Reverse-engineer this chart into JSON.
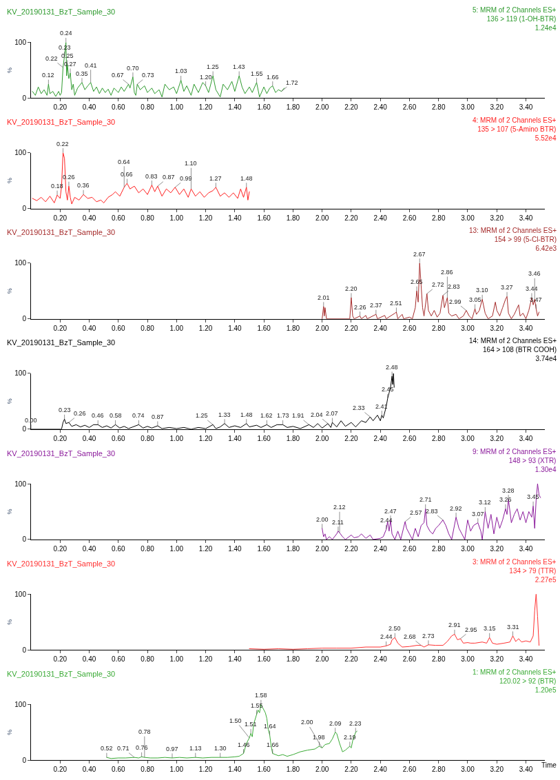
{
  "chart_data": [
    {
      "type": "line",
      "title": "KV_20190131_BzT_Sample_30",
      "subtitle": "5: MRM of 2 Channels ES+\n136 > 119 (1-OH-BTR)\n1.24e4",
      "ylabel": "%",
      "xlim": [
        0,
        3.53
      ],
      "ylim": [
        0,
        100
      ],
      "yticks": [
        0,
        100
      ],
      "xticks": [
        {
          "value": 0.2,
          "label": "0.20"
        },
        {
          "value": 0.4,
          "label": "0.40"
        },
        {
          "value": 0.6,
          "label": "0.60"
        },
        {
          "value": 0.8,
          "label": "0.80"
        },
        {
          "value": 1.0,
          "label": "1.00"
        },
        {
          "value": 1.2,
          "label": "1.20"
        },
        {
          "value": 1.4,
          "label": "1.40"
        },
        {
          "value": 1.6,
          "label": "1.60"
        },
        {
          "value": 1.8,
          "label": "1.80"
        },
        {
          "value": 2.0,
          "label": "2.00"
        },
        {
          "value": 2.2,
          "label": "2.20"
        },
        {
          "value": 2.4,
          "label": "2.40"
        },
        {
          "value": 2.6,
          "label": "2.60"
        },
        {
          "value": 2.8,
          "label": "2.80"
        },
        {
          "value": 3.0,
          "label": "3.00"
        },
        {
          "value": 3.2,
          "label": "3.20"
        },
        {
          "value": 3.4,
          "label": "3.40"
        }
      ],
      "x": [
        0.01,
        0.03,
        0.05,
        0.07,
        0.09,
        0.11,
        0.12,
        0.13,
        0.15,
        0.17,
        0.19,
        0.2,
        0.21,
        0.22,
        0.23,
        0.24,
        0.245,
        0.25,
        0.26,
        0.27,
        0.28,
        0.29,
        0.3,
        0.32,
        0.35,
        0.37,
        0.39,
        0.41,
        0.43,
        0.45,
        0.47,
        0.49,
        0.51,
        0.53,
        0.55,
        0.57,
        0.6,
        0.62,
        0.64,
        0.67,
        0.68,
        0.7,
        0.71,
        0.72,
        0.73,
        0.75,
        0.78,
        0.8,
        0.83,
        0.85,
        0.88,
        0.9,
        0.92,
        0.95,
        0.98,
        1.0,
        1.03,
        1.05,
        1.07,
        1.1,
        1.12,
        1.15,
        1.18,
        1.2,
        1.22,
        1.25,
        1.27,
        1.3,
        1.32,
        1.35,
        1.38,
        1.4,
        1.43,
        1.45,
        1.47,
        1.5,
        1.52,
        1.55,
        1.57,
        1.6,
        1.62,
        1.64,
        1.66,
        1.68,
        1.7,
        1.72,
        1.74
      ],
      "series": [
        {
          "color": "#2e9a2e",
          "values": [
            12,
            5,
            20,
            8,
            15,
            5,
            25,
            8,
            12,
            3,
            12,
            5,
            10,
            55,
            75,
            100,
            40,
            60,
            35,
            45,
            15,
            25,
            5,
            18,
            28,
            15,
            22,
            28,
            12,
            20,
            8,
            18,
            10,
            16,
            5,
            18,
            10,
            20,
            12,
            25,
            18,
            38,
            10,
            5,
            25,
            15,
            22,
            10,
            18,
            8,
            15,
            2,
            25,
            15,
            20,
            8,
            32,
            12,
            22,
            5,
            25,
            10,
            28,
            22,
            10,
            40,
            15,
            2,
            25,
            15,
            30,
            12,
            40,
            20,
            8,
            20,
            10,
            28,
            2,
            20,
            8,
            18,
            22,
            10,
            15,
            12,
            18
          ]
        }
      ],
      "annotations": [
        {
          "text": "0.12",
          "x": 0.12,
          "y": 25
        },
        {
          "text": "0.22",
          "x": 0.22,
          "y": 55
        },
        {
          "text": "0.23",
          "x": 0.23,
          "y": 75
        },
        {
          "text": "0.24",
          "x": 0.24,
          "y": 100
        },
        {
          "text": "0.25",
          "x": 0.25,
          "y": 60
        },
        {
          "text": "0.27",
          "x": 0.27,
          "y": 45
        },
        {
          "text": "0.35",
          "x": 0.35,
          "y": 28
        },
        {
          "text": "0.41",
          "x": 0.41,
          "y": 28
        },
        {
          "text": "0.67",
          "x": 0.67,
          "y": 25
        },
        {
          "text": "0.70",
          "x": 0.7,
          "y": 38
        },
        {
          "text": "0.73",
          "x": 0.73,
          "y": 25
        },
        {
          "text": "1.03",
          "x": 1.03,
          "y": 32
        },
        {
          "text": "1.20",
          "x": 1.2,
          "y": 22
        },
        {
          "text": "1.25",
          "x": 1.25,
          "y": 40
        },
        {
          "text": "1.43",
          "x": 1.43,
          "y": 40
        },
        {
          "text": "1.55",
          "x": 1.55,
          "y": 28
        },
        {
          "text": "1.66",
          "x": 1.66,
          "y": 22
        },
        {
          "text": "1.72",
          "x": 1.72,
          "y": 12
        }
      ]
    },
    {
      "type": "line",
      "title": "KV_20190131_BzT_Sample_30",
      "subtitle": "4: MRM of 2 Channels ES+\n135 > 107 (5-Amino BTR)\n5.52e4",
      "ylabel": "%",
      "xlim": [
        0,
        3.53
      ],
      "ylim": [
        0,
        100
      ],
      "yticks": [
        0,
        100
      ],
      "xticks": [
        {
          "value": 0.2,
          "label": "0.20"
        },
        {
          "value": 0.4,
          "label": "0.40"
        },
        {
          "value": 0.6,
          "label": "0.60"
        },
        {
          "value": 0.8,
          "label": "0.80"
        },
        {
          "value": 1.0,
          "label": "1.00"
        },
        {
          "value": 1.2,
          "label": "1.20"
        },
        {
          "value": 1.4,
          "label": "1.40"
        },
        {
          "value": 1.6,
          "label": "1.60"
        },
        {
          "value": 1.8,
          "label": "1.80"
        },
        {
          "value": 2.0,
          "label": "2.00"
        },
        {
          "value": 2.2,
          "label": "2.20"
        },
        {
          "value": 2.4,
          "label": "2.40"
        },
        {
          "value": 2.6,
          "label": "2.60"
        },
        {
          "value": 2.8,
          "label": "2.80"
        },
        {
          "value": 3.0,
          "label": "3.00"
        },
        {
          "value": 3.2,
          "label": "3.20"
        },
        {
          "value": 3.4,
          "label": "3.40"
        }
      ],
      "x": [
        0.01,
        0.04,
        0.07,
        0.1,
        0.13,
        0.16,
        0.18,
        0.2,
        0.21,
        0.22,
        0.23,
        0.24,
        0.25,
        0.26,
        0.27,
        0.28,
        0.3,
        0.33,
        0.36,
        0.39,
        0.42,
        0.45,
        0.48,
        0.5,
        0.53,
        0.56,
        0.58,
        0.61,
        0.64,
        0.66,
        0.68,
        0.71,
        0.74,
        0.77,
        0.8,
        0.83,
        0.85,
        0.87,
        0.9,
        0.93,
        0.96,
        0.99,
        1.02,
        1.05,
        1.08,
        1.1,
        1.13,
        1.16,
        1.19,
        1.22,
        1.25,
        1.27,
        1.3,
        1.33,
        1.36,
        1.39,
        1.42,
        1.44,
        1.46,
        1.48,
        1.49,
        1.5
      ],
      "series": [
        {
          "color": "#ff2020",
          "values": [
            18,
            14,
            20,
            12,
            22,
            10,
            24,
            18,
            40,
            100,
            90,
            30,
            15,
            40,
            20,
            8,
            20,
            15,
            25,
            18,
            20,
            12,
            15,
            10,
            20,
            25,
            30,
            22,
            38,
            45,
            35,
            40,
            28,
            35,
            25,
            42,
            30,
            40,
            22,
            35,
            28,
            38,
            25,
            35,
            20,
            35,
            22,
            30,
            20,
            28,
            32,
            38,
            22,
            28,
            20,
            28,
            18,
            35,
            20,
            38,
            15,
            30
          ]
        }
      ],
      "annotations": [
        {
          "text": "0.18",
          "x": 0.18,
          "y": 24
        },
        {
          "text": "0.22",
          "x": 0.22,
          "y": 100
        },
        {
          "text": "0.26",
          "x": 0.26,
          "y": 40
        },
        {
          "text": "0.36",
          "x": 0.36,
          "y": 25
        },
        {
          "text": "0.64",
          "x": 0.64,
          "y": 38
        },
        {
          "text": "0.66",
          "x": 0.66,
          "y": 45
        },
        {
          "text": "0.83",
          "x": 0.83,
          "y": 42
        },
        {
          "text": "0.87",
          "x": 0.87,
          "y": 40
        },
        {
          "text": "0.99",
          "x": 0.99,
          "y": 38
        },
        {
          "text": "1.10",
          "x": 1.1,
          "y": 35
        },
        {
          "text": "1.27",
          "x": 1.27,
          "y": 38
        },
        {
          "text": "1.48",
          "x": 1.48,
          "y": 38
        }
      ]
    },
    {
      "type": "line",
      "title": "KV_20190131_BzT_Sample_30",
      "subtitle": "13: MRM of 2 Channels ES+\n154 > 99 (5-Cl-BTR)\n6.42e3",
      "ylabel": "%",
      "xlim": [
        0,
        3.53
      ],
      "ylim": [
        0,
        100
      ],
      "yticks": [
        0,
        100
      ],
      "xticks": [
        {
          "value": 0.2,
          "label": "0.20"
        },
        {
          "value": 0.4,
          "label": "0.40"
        },
        {
          "value": 0.6,
          "label": "0.60"
        },
        {
          "value": 0.8,
          "label": "0.80"
        },
        {
          "value": 1.0,
          "label": "1.00"
        },
        {
          "value": 1.2,
          "label": "1.20"
        },
        {
          "value": 1.4,
          "label": "1.40"
        },
        {
          "value": 1.6,
          "label": "1.60"
        },
        {
          "value": 1.8,
          "label": "1.80"
        },
        {
          "value": 2.0,
          "label": "2.00"
        },
        {
          "value": 2.2,
          "label": "2.20"
        },
        {
          "value": 2.4,
          "label": "2.40"
        },
        {
          "value": 2.6,
          "label": "2.60"
        },
        {
          "value": 2.8,
          "label": "2.80"
        },
        {
          "value": 3.0,
          "label": "3.00"
        },
        {
          "value": 3.2,
          "label": "3.20"
        },
        {
          "value": 3.4,
          "label": "3.40"
        }
      ],
      "x": [
        2.0,
        2.01,
        2.015,
        2.02,
        2.03,
        2.19,
        2.2,
        2.21,
        2.22,
        2.26,
        2.27,
        2.3,
        2.31,
        2.37,
        2.38,
        2.43,
        2.44,
        2.5,
        2.51,
        2.52,
        2.55,
        2.56,
        2.6,
        2.62,
        2.64,
        2.65,
        2.66,
        2.67,
        2.68,
        2.69,
        2.7,
        2.72,
        2.73,
        2.75,
        2.77,
        2.79,
        2.81,
        2.83,
        2.84,
        2.86,
        2.87,
        2.89,
        2.92,
        2.94,
        2.97,
        2.99,
        3.01,
        3.03,
        3.05,
        3.06,
        3.08,
        3.1,
        3.12,
        3.14,
        3.17,
        3.19,
        3.2,
        3.22,
        3.24,
        3.26,
        3.27,
        3.28,
        3.3,
        3.32,
        3.35,
        3.36,
        3.38,
        3.4,
        3.42,
        3.44,
        3.45,
        3.46,
        3.47,
        3.48,
        3.49
      ],
      "series": [
        {
          "color": "#a52a2a",
          "values": [
            0,
            22,
            5,
            20,
            0,
            0,
            38,
            5,
            0,
            5,
            0,
            6,
            0,
            8,
            0,
            6,
            0,
            10,
            12,
            0,
            8,
            0,
            3,
            0,
            20,
            50,
            30,
            100,
            60,
            20,
            5,
            45,
            15,
            5,
            15,
            3,
            10,
            42,
            20,
            38,
            10,
            5,
            8,
            0,
            5,
            15,
            5,
            0,
            18,
            8,
            15,
            35,
            10,
            0,
            5,
            30,
            15,
            5,
            20,
            35,
            40,
            10,
            0,
            8,
            25,
            5,
            10,
            0,
            15,
            38,
            25,
            35,
            18,
            5,
            12
          ]
        }
      ],
      "annotations": [
        {
          "text": "2.01",
          "x": 2.01,
          "y": 22
        },
        {
          "text": "2.20",
          "x": 2.2,
          "y": 38
        },
        {
          "text": "2.26",
          "x": 2.26,
          "y": 5
        },
        {
          "text": "2.37",
          "x": 2.37,
          "y": 8
        },
        {
          "text": "2.51",
          "x": 2.51,
          "y": 12
        },
        {
          "text": "2.65",
          "x": 2.65,
          "y": 50
        },
        {
          "text": "2.67",
          "x": 2.67,
          "y": 100
        },
        {
          "text": "2.72",
          "x": 2.72,
          "y": 45
        },
        {
          "text": "2.83",
          "x": 2.83,
          "y": 42
        },
        {
          "text": "2.86",
          "x": 2.86,
          "y": 38
        },
        {
          "text": "2.99",
          "x": 2.99,
          "y": 15
        },
        {
          "text": "3.05",
          "x": 3.05,
          "y": 18
        },
        {
          "text": "3.10",
          "x": 3.1,
          "y": 35
        },
        {
          "text": "3.27",
          "x": 3.27,
          "y": 40
        },
        {
          "text": "3.44",
          "x": 3.44,
          "y": 38
        },
        {
          "text": "3.46",
          "x": 3.46,
          "y": 35
        },
        {
          "text": "3.47",
          "x": 3.47,
          "y": 18
        }
      ]
    },
    {
      "type": "line",
      "title": "KV_20190131_BzT_Sample_30",
      "subtitle": "14: MRM of 2 Channels ES+\n164 > 108 (BTR COOH)\n3.74e4",
      "ylabel": "%",
      "xlim": [
        0,
        3.53
      ],
      "ylim": [
        0,
        100
      ],
      "yticks": [
        0,
        100
      ],
      "xticks": [
        {
          "value": 0.2,
          "label": "0.20"
        },
        {
          "value": 0.4,
          "label": "0.40"
        },
        {
          "value": 0.6,
          "label": "0.60"
        },
        {
          "value": 0.8,
          "label": "0.80"
        },
        {
          "value": 1.0,
          "label": "1.00"
        },
        {
          "value": 1.2,
          "label": "1.20"
        },
        {
          "value": 1.4,
          "label": "1.40"
        },
        {
          "value": 1.6,
          "label": "1.60"
        },
        {
          "value": 1.8,
          "label": "1.80"
        },
        {
          "value": 2.0,
          "label": "2.00"
        },
        {
          "value": 2.2,
          "label": "2.20"
        },
        {
          "value": 2.4,
          "label": "2.40"
        },
        {
          "value": 2.6,
          "label": "2.60"
        },
        {
          "value": 2.8,
          "label": "2.80"
        },
        {
          "value": 3.0,
          "label": "3.00"
        },
        {
          "value": 3.2,
          "label": "3.20"
        },
        {
          "value": 3.4,
          "label": "3.40"
        }
      ],
      "x": [
        0.0,
        0.21,
        0.22,
        0.23,
        0.24,
        0.26,
        0.28,
        0.31,
        0.34,
        0.37,
        0.4,
        0.43,
        0.46,
        0.49,
        0.52,
        0.55,
        0.58,
        0.61,
        0.64,
        0.67,
        0.7,
        0.74,
        0.77,
        0.8,
        0.83,
        0.87,
        0.9,
        0.95,
        1.0,
        1.05,
        1.1,
        1.15,
        1.2,
        1.25,
        1.27,
        1.3,
        1.33,
        1.36,
        1.4,
        1.44,
        1.48,
        1.5,
        1.55,
        1.58,
        1.62,
        1.65,
        1.69,
        1.73,
        1.76,
        1.8,
        1.85,
        1.91,
        1.94,
        1.97,
        2.0,
        2.04,
        2.06,
        2.07,
        2.1,
        2.13,
        2.16,
        2.2,
        2.23,
        2.27,
        2.3,
        2.33,
        2.35,
        2.38,
        2.4,
        2.41,
        2.42,
        2.44,
        2.45,
        2.46,
        2.47,
        2.48,
        2.485,
        2.49,
        2.495
      ],
      "series": [
        {
          "color": "#000000",
          "values": [
            0,
            0,
            12,
            18,
            10,
            12,
            5,
            8,
            4,
            7,
            3,
            8,
            8,
            3,
            6,
            2,
            8,
            2,
            5,
            1,
            4,
            8,
            2,
            5,
            2,
            6,
            1,
            3,
            1,
            3,
            0,
            3,
            1,
            8,
            1,
            4,
            10,
            3,
            6,
            3,
            10,
            4,
            7,
            3,
            8,
            3,
            8,
            8,
            3,
            5,
            1,
            8,
            3,
            10,
            2,
            10,
            3,
            12,
            4,
            15,
            5,
            12,
            4,
            15,
            12,
            22,
            15,
            25,
            15,
            25,
            20,
            40,
            55,
            65,
            75,
            95,
            80,
            100,
            75
          ]
        }
      ],
      "annotations": [
        {
          "text": "0.00",
          "x": 0.0,
          "y": 0
        },
        {
          "text": "0.23",
          "x": 0.23,
          "y": 18
        },
        {
          "text": "0.26",
          "x": 0.26,
          "y": 12
        },
        {
          "text": "0.46",
          "x": 0.46,
          "y": 8
        },
        {
          "text": "0.58",
          "x": 0.58,
          "y": 8
        },
        {
          "text": "0.74",
          "x": 0.74,
          "y": 8
        },
        {
          "text": "0.87",
          "x": 0.87,
          "y": 6
        },
        {
          "text": "1.25",
          "x": 1.25,
          "y": 8
        },
        {
          "text": "1.33",
          "x": 1.33,
          "y": 10
        },
        {
          "text": "1.48",
          "x": 1.48,
          "y": 10
        },
        {
          "text": "1.62",
          "x": 1.62,
          "y": 8
        },
        {
          "text": "1.73",
          "x": 1.73,
          "y": 8
        },
        {
          "text": "1.91",
          "x": 1.91,
          "y": 8
        },
        {
          "text": "2.04",
          "x": 2.04,
          "y": 10
        },
        {
          "text": "2.07",
          "x": 2.07,
          "y": 12
        },
        {
          "text": "2.33",
          "x": 2.33,
          "y": 22
        },
        {
          "text": "2.41",
          "x": 2.41,
          "y": 25
        },
        {
          "text": "2.45",
          "x": 2.45,
          "y": 55
        },
        {
          "text": "2.48",
          "x": 2.48,
          "y": 95
        }
      ]
    },
    {
      "type": "line",
      "title": "KV_20190131_BzT_Sample_30",
      "subtitle": "9: MRM of 2 Channels ES+\n148 > 93 (XTR)\n1.30e4",
      "ylabel": "%",
      "xlim": [
        0,
        3.53
      ],
      "ylim": [
        0,
        100
      ],
      "yticks": [
        0,
        100
      ],
      "xticks": [
        {
          "value": 0.2,
          "label": "0.20"
        },
        {
          "value": 0.4,
          "label": "0.40"
        },
        {
          "value": 0.6,
          "label": "0.60"
        },
        {
          "value": 0.8,
          "label": "0.80"
        },
        {
          "value": 1.0,
          "label": "1.00"
        },
        {
          "value": 1.2,
          "label": "1.20"
        },
        {
          "value": 1.4,
          "label": "1.40"
        },
        {
          "value": 1.6,
          "label": "1.60"
        },
        {
          "value": 1.8,
          "label": "1.80"
        },
        {
          "value": 2.0,
          "label": "2.00"
        },
        {
          "value": 2.2,
          "label": "2.20"
        },
        {
          "value": 2.4,
          "label": "2.40"
        },
        {
          "value": 2.6,
          "label": "2.60"
        },
        {
          "value": 2.8,
          "label": "2.80"
        },
        {
          "value": 3.0,
          "label": "3.00"
        },
        {
          "value": 3.2,
          "label": "3.20"
        },
        {
          "value": 3.4,
          "label": "3.40"
        }
      ],
      "x": [
        2.0,
        2.01,
        2.02,
        2.03,
        2.05,
        2.07,
        2.1,
        2.11,
        2.12,
        2.14,
        2.16,
        2.2,
        2.22,
        2.25,
        2.27,
        2.3,
        2.33,
        2.35,
        2.4,
        2.42,
        2.44,
        2.45,
        2.46,
        2.47,
        2.48,
        2.5,
        2.52,
        2.54,
        2.57,
        2.58,
        2.6,
        2.62,
        2.64,
        2.66,
        2.68,
        2.7,
        2.71,
        2.72,
        2.74,
        2.76,
        2.78,
        2.8,
        2.83,
        2.85,
        2.87,
        2.89,
        2.92,
        2.94,
        2.96,
        2.98,
        3.0,
        3.02,
        3.04,
        3.07,
        3.09,
        3.1,
        3.12,
        3.14,
        3.16,
        3.18,
        3.2,
        3.22,
        3.24,
        3.26,
        3.27,
        3.28,
        3.3,
        3.32,
        3.34,
        3.36,
        3.38,
        3.4,
        3.42,
        3.44,
        3.45,
        3.46,
        3.47,
        3.48,
        3.49,
        3.5
      ],
      "series": [
        {
          "color": "#8b1a9b",
          "values": [
            20,
            5,
            10,
            0,
            5,
            0,
            10,
            15,
            12,
            5,
            0,
            8,
            3,
            5,
            10,
            2,
            8,
            0,
            2,
            5,
            18,
            32,
            15,
            35,
            10,
            0,
            15,
            0,
            32,
            20,
            10,
            0,
            20,
            5,
            25,
            30,
            55,
            25,
            15,
            10,
            20,
            25,
            35,
            25,
            10,
            0,
            40,
            20,
            10,
            0,
            35,
            15,
            25,
            30,
            15,
            0,
            50,
            20,
            45,
            10,
            40,
            20,
            35,
            55,
            45,
            72,
            30,
            45,
            55,
            35,
            50,
            30,
            50,
            40,
            60,
            20,
            70,
            100,
            80,
            75
          ]
        }
      ],
      "annotations": [
        {
          "text": "2.00",
          "x": 2.0,
          "y": 20
        },
        {
          "text": "2.11",
          "x": 2.11,
          "y": 15
        },
        {
          "text": "2.12",
          "x": 2.12,
          "y": 12
        },
        {
          "text": "2.44",
          "x": 2.44,
          "y": 18
        },
        {
          "text": "2.47",
          "x": 2.47,
          "y": 35
        },
        {
          "text": "2.57",
          "x": 2.57,
          "y": 32
        },
        {
          "text": "2.71",
          "x": 2.71,
          "y": 55
        },
        {
          "text": "2.83",
          "x": 2.83,
          "y": 35
        },
        {
          "text": "2.92",
          "x": 2.92,
          "y": 40
        },
        {
          "text": "3.07",
          "x": 3.07,
          "y": 30
        },
        {
          "text": "3.12",
          "x": 3.12,
          "y": 50
        },
        {
          "text": "3.26",
          "x": 3.26,
          "y": 55
        },
        {
          "text": "3.28",
          "x": 3.28,
          "y": 72
        },
        {
          "text": "3.45",
          "x": 3.45,
          "y": 60
        }
      ]
    },
    {
      "type": "line",
      "title": "KV_20190131_BzT_Sample_30",
      "subtitle": "3: MRM of 2 Channels ES+\n134 > 79 (TTR)\n2.27e5",
      "ylabel": "%",
      "xlim": [
        0,
        3.53
      ],
      "ylim": [
        0,
        100
      ],
      "yticks": [
        0,
        100
      ],
      "xticks": [
        {
          "value": 0.2,
          "label": "0.20"
        },
        {
          "value": 0.4,
          "label": "0.40"
        },
        {
          "value": 0.6,
          "label": "0.60"
        },
        {
          "value": 0.8,
          "label": "0.80"
        },
        {
          "value": 1.0,
          "label": "1.00"
        },
        {
          "value": 1.2,
          "label": "1.20"
        },
        {
          "value": 1.4,
          "label": "1.40"
        },
        {
          "value": 1.6,
          "label": "1.60"
        },
        {
          "value": 1.8,
          "label": "1.80"
        },
        {
          "value": 2.0,
          "label": "2.00"
        },
        {
          "value": 2.2,
          "label": "2.20"
        },
        {
          "value": 2.4,
          "label": "2.40"
        },
        {
          "value": 2.6,
          "label": "2.60"
        },
        {
          "value": 2.8,
          "label": "2.80"
        },
        {
          "value": 3.0,
          "label": "3.00"
        },
        {
          "value": 3.2,
          "label": "3.20"
        },
        {
          "value": 3.4,
          "label": "3.40"
        }
      ],
      "x": [
        1.5,
        1.6,
        1.7,
        1.8,
        1.9,
        2.0,
        2.1,
        2.2,
        2.3,
        2.4,
        2.44,
        2.47,
        2.48,
        2.5,
        2.52,
        2.55,
        2.6,
        2.65,
        2.68,
        2.7,
        2.73,
        2.78,
        2.83,
        2.86,
        2.89,
        2.91,
        2.93,
        2.95,
        2.97,
        3.0,
        3.02,
        3.05,
        3.1,
        3.13,
        3.15,
        3.17,
        3.2,
        3.25,
        3.29,
        3.31,
        3.33,
        3.35,
        3.37,
        3.4,
        3.43,
        3.45,
        3.46,
        3.47,
        3.48,
        3.49
      ],
      "series": [
        {
          "color": "#ff3030",
          "values": [
            2,
            1,
            2,
            1,
            2,
            3,
            3,
            3,
            5,
            5,
            7,
            10,
            18,
            22,
            12,
            5,
            6,
            8,
            8,
            5,
            9,
            8,
            8,
            15,
            25,
            28,
            18,
            20,
            12,
            13,
            12,
            12,
            14,
            12,
            22,
            12,
            10,
            12,
            14,
            25,
            15,
            20,
            14,
            16,
            14,
            25,
            70,
            100,
            60,
            8
          ]
        }
      ],
      "annotations": [
        {
          "text": "2.44",
          "x": 2.44,
          "y": 7
        },
        {
          "text": "2.50",
          "x": 2.5,
          "y": 22
        },
        {
          "text": "2.68",
          "x": 2.68,
          "y": 8
        },
        {
          "text": "2.73",
          "x": 2.73,
          "y": 9
        },
        {
          "text": "2.91",
          "x": 2.91,
          "y": 28
        },
        {
          "text": "2.95",
          "x": 2.95,
          "y": 20
        },
        {
          "text": "3.15",
          "x": 3.15,
          "y": 22
        },
        {
          "text": "3.31",
          "x": 3.31,
          "y": 25
        }
      ]
    },
    {
      "type": "line",
      "title": "KV_20190131_BzT_Sample_30",
      "subtitle": "1: MRM of 2 Channels ES+\n120.02 > 92 (BTR)\n1.20e5",
      "ylabel": "%",
      "xlabel": "Time",
      "xlim": [
        0,
        3.53
      ],
      "ylim": [
        0,
        100
      ],
      "yticks": [
        0,
        100
      ],
      "xticks": [
        {
          "value": 0.2,
          "label": "0.20"
        },
        {
          "value": 0.4,
          "label": "0.40"
        },
        {
          "value": 0.6,
          "label": "0.60"
        },
        {
          "value": 0.8,
          "label": "0.80"
        },
        {
          "value": 1.0,
          "label": "1.00"
        },
        {
          "value": 1.2,
          "label": "1.20"
        },
        {
          "value": 1.4,
          "label": "1.40"
        },
        {
          "value": 1.6,
          "label": "1.60"
        },
        {
          "value": 1.8,
          "label": "1.80"
        },
        {
          "value": 2.0,
          "label": "2.00"
        },
        {
          "value": 2.2,
          "label": "2.20"
        },
        {
          "value": 2.4,
          "label": "2.40"
        },
        {
          "value": 2.6,
          "label": "2.60"
        },
        {
          "value": 2.8,
          "label": "2.80"
        },
        {
          "value": 3.0,
          "label": "3.00"
        },
        {
          "value": 3.2,
          "label": "3.20"
        },
        {
          "value": 3.4,
          "label": "3.40"
        }
      ],
      "x": [
        0.52,
        0.55,
        0.6,
        0.65,
        0.71,
        0.74,
        0.76,
        0.78,
        0.82,
        0.87,
        0.92,
        0.97,
        1.02,
        1.07,
        1.13,
        1.18,
        1.24,
        1.3,
        1.35,
        1.4,
        1.43,
        1.46,
        1.48,
        1.5,
        1.51,
        1.52,
        1.53,
        1.55,
        1.56,
        1.57,
        1.58,
        1.59,
        1.61,
        1.62,
        1.63,
        1.64,
        1.65,
        1.66,
        1.68,
        1.7,
        1.73,
        1.76,
        1.8,
        1.85,
        1.9,
        1.95,
        1.98,
        2.0,
        2.02,
        2.05,
        2.07,
        2.09,
        2.1,
        2.12,
        2.14,
        2.16,
        2.19,
        2.2,
        2.21,
        2.23,
        2.24
      ],
      "series": [
        {
          "color": "#3aaa35",
          "values": [
            5,
            3,
            4,
            4,
            5,
            4,
            6,
            5,
            4,
            4,
            5,
            4,
            5,
            4,
            5,
            4,
            5,
            5,
            5,
            6,
            7,
            12,
            30,
            40,
            48,
            42,
            65,
            82,
            90,
            85,
            100,
            95,
            85,
            75,
            55,
            45,
            25,
            12,
            10,
            8,
            10,
            7,
            10,
            15,
            18,
            20,
            25,
            22,
            28,
            30,
            38,
            50,
            48,
            30,
            15,
            18,
            25,
            22,
            35,
            50,
            52
          ]
        }
      ],
      "annotations": [
        {
          "text": "0.52",
          "x": 0.52,
          "y": 5
        },
        {
          "text": "0.71",
          "x": 0.71,
          "y": 5
        },
        {
          "text": "0.76",
          "x": 0.76,
          "y": 6
        },
        {
          "text": "0.78",
          "x": 0.78,
          "y": 5
        },
        {
          "text": "0.97",
          "x": 0.97,
          "y": 4
        },
        {
          "text": "1.13",
          "x": 1.13,
          "y": 5
        },
        {
          "text": "1.30",
          "x": 1.3,
          "y": 5
        },
        {
          "text": "1.46",
          "x": 1.46,
          "y": 12
        },
        {
          "text": "1.50",
          "x": 1.5,
          "y": 40
        },
        {
          "text": "1.51",
          "x": 1.51,
          "y": 48
        },
        {
          "text": "1.55",
          "x": 1.55,
          "y": 82
        },
        {
          "text": "1.58",
          "x": 1.58,
          "y": 100
        },
        {
          "text": "1.64",
          "x": 1.64,
          "y": 45
        },
        {
          "text": "1.66",
          "x": 1.66,
          "y": 12
        },
        {
          "text": "1.98",
          "x": 1.98,
          "y": 25
        },
        {
          "text": "2.00",
          "x": 2.0,
          "y": 22
        },
        {
          "text": "2.09",
          "x": 2.09,
          "y": 50
        },
        {
          "text": "2.19",
          "x": 2.19,
          "y": 25
        },
        {
          "text": "2.23",
          "x": 2.23,
          "y": 50
        }
      ]
    }
  ]
}
